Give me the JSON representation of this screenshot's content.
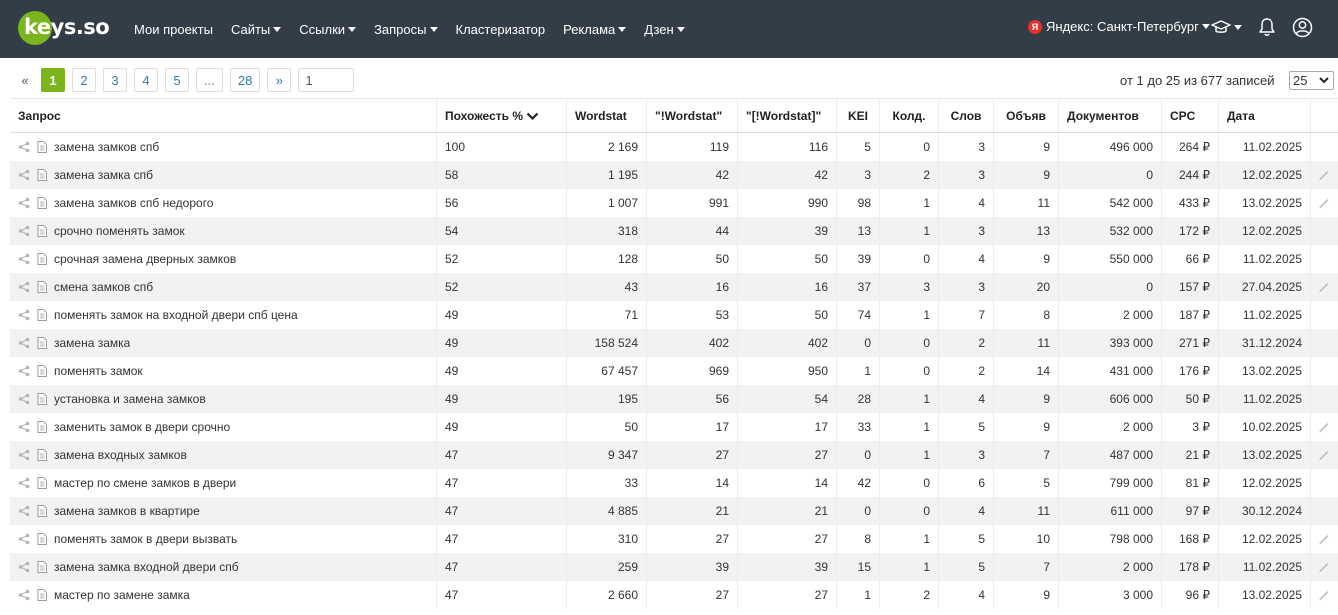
{
  "header": {
    "logo_text": "keys.so",
    "nav": [
      {
        "label": "Мои проекты",
        "dropdown": false
      },
      {
        "label": "Сайты",
        "dropdown": true
      },
      {
        "label": "Ссылки",
        "dropdown": true
      },
      {
        "label": "Запросы",
        "dropdown": true
      },
      {
        "label": "Кластеризатор",
        "dropdown": false
      },
      {
        "label": "Реклама",
        "dropdown": true
      },
      {
        "label": "Дзен",
        "dropdown": true
      }
    ],
    "region_badge": "Я",
    "region_label": "Яндекс: Санкт-Петербург",
    "icons": [
      "graduation-cap-icon",
      "bell-icon",
      "user-icon"
    ],
    "colors": {
      "bar": "#323d48",
      "accent": "#7ab51d",
      "yandex": "#e5322d"
    }
  },
  "pagination": {
    "prev": "«",
    "pages": [
      "1",
      "2",
      "3",
      "4",
      "5",
      "...",
      "28"
    ],
    "active_page": "1",
    "next": "»",
    "goto_value": "1",
    "records_text": "от 1 до 25 из 677 записей",
    "per_page": "25"
  },
  "table": {
    "columns": [
      "Запрос",
      "Похожесть %",
      "Wordstat",
      "\"!Wordstat\"",
      "\"[!Wordstat]\"",
      "KEI",
      "Колд.",
      "Слов",
      "Объяв",
      "Документов",
      "CPC",
      "Дата"
    ],
    "rows": [
      {
        "query": "замена замков спб",
        "sim": "100",
        "ws": "2 169",
        "ws2": "119",
        "ws3": "116",
        "kei": "5",
        "kold": "0",
        "words": "3",
        "ads": "9",
        "docs": "496 000",
        "cpc": "264 ₽",
        "date": "11.02.2025",
        "wand": false
      },
      {
        "query": "замена замка спб",
        "sim": "58",
        "ws": "1 195",
        "ws2": "42",
        "ws3": "42",
        "kei": "3",
        "kold": "2",
        "words": "3",
        "ads": "9",
        "docs": "0",
        "cpc": "244 ₽",
        "date": "12.02.2025",
        "wand": true
      },
      {
        "query": "замена замков спб недорого",
        "sim": "56",
        "ws": "1 007",
        "ws2": "991",
        "ws3": "990",
        "kei": "98",
        "kold": "1",
        "words": "4",
        "ads": "11",
        "docs": "542 000",
        "cpc": "433 ₽",
        "date": "13.02.2025",
        "wand": true
      },
      {
        "query": "срочно поменять замок",
        "sim": "54",
        "ws": "318",
        "ws2": "44",
        "ws3": "39",
        "kei": "13",
        "kold": "1",
        "words": "3",
        "ads": "13",
        "docs": "532 000",
        "cpc": "172 ₽",
        "date": "12.02.2025",
        "wand": false
      },
      {
        "query": "срочная замена дверных замков",
        "sim": "52",
        "ws": "128",
        "ws2": "50",
        "ws3": "50",
        "kei": "39",
        "kold": "0",
        "words": "4",
        "ads": "9",
        "docs": "550 000",
        "cpc": "66 ₽",
        "date": "11.02.2025",
        "wand": false
      },
      {
        "query": "смена замков спб",
        "sim": "52",
        "ws": "43",
        "ws2": "16",
        "ws3": "16",
        "kei": "37",
        "kold": "3",
        "words": "3",
        "ads": "20",
        "docs": "0",
        "cpc": "157 ₽",
        "date": "27.04.2025",
        "wand": true
      },
      {
        "query": "поменять замок на входной двери спб цена",
        "sim": "49",
        "ws": "71",
        "ws2": "53",
        "ws3": "50",
        "kei": "74",
        "kold": "1",
        "words": "7",
        "ads": "8",
        "docs": "2 000",
        "cpc": "187 ₽",
        "date": "11.02.2025",
        "wand": false
      },
      {
        "query": "замена замка",
        "sim": "49",
        "ws": "158 524",
        "ws2": "402",
        "ws3": "402",
        "kei": "0",
        "kold": "0",
        "words": "2",
        "ads": "11",
        "docs": "393 000",
        "cpc": "271 ₽",
        "date": "31.12.2024",
        "wand": false
      },
      {
        "query": "поменять замок",
        "sim": "49",
        "ws": "67 457",
        "ws2": "969",
        "ws3": "950",
        "kei": "1",
        "kold": "0",
        "words": "2",
        "ads": "14",
        "docs": "431 000",
        "cpc": "176 ₽",
        "date": "13.02.2025",
        "wand": false
      },
      {
        "query": "установка и замена замков",
        "sim": "49",
        "ws": "195",
        "ws2": "56",
        "ws3": "54",
        "kei": "28",
        "kold": "1",
        "words": "4",
        "ads": "9",
        "docs": "606 000",
        "cpc": "50 ₽",
        "date": "11.02.2025",
        "wand": false
      },
      {
        "query": "заменить замок в двери срочно",
        "sim": "49",
        "ws": "50",
        "ws2": "17",
        "ws3": "17",
        "kei": "33",
        "kold": "1",
        "words": "5",
        "ads": "9",
        "docs": "2 000",
        "cpc": "3 ₽",
        "date": "10.02.2025",
        "wand": true
      },
      {
        "query": "замена входных замков",
        "sim": "47",
        "ws": "9 347",
        "ws2": "27",
        "ws3": "27",
        "kei": "0",
        "kold": "1",
        "words": "3",
        "ads": "7",
        "docs": "487 000",
        "cpc": "21 ₽",
        "date": "13.02.2025",
        "wand": true
      },
      {
        "query": "мастер по смене замков в двери",
        "sim": "47",
        "ws": "33",
        "ws2": "14",
        "ws3": "14",
        "kei": "42",
        "kold": "0",
        "words": "6",
        "ads": "5",
        "docs": "799 000",
        "cpc": "81 ₽",
        "date": "12.02.2025",
        "wand": false
      },
      {
        "query": "замена замков в квартире",
        "sim": "47",
        "ws": "4 885",
        "ws2": "21",
        "ws3": "21",
        "kei": "0",
        "kold": "0",
        "words": "4",
        "ads": "11",
        "docs": "611 000",
        "cpc": "97 ₽",
        "date": "30.12.2024",
        "wand": false
      },
      {
        "query": "поменять замок в двери вызвать",
        "sim": "47",
        "ws": "310",
        "ws2": "27",
        "ws3": "27",
        "kei": "8",
        "kold": "1",
        "words": "5",
        "ads": "10",
        "docs": "798 000",
        "cpc": "168 ₽",
        "date": "12.02.2025",
        "wand": true
      },
      {
        "query": "замена замка входной двери спб",
        "sim": "47",
        "ws": "259",
        "ws2": "39",
        "ws3": "39",
        "kei": "15",
        "kold": "1",
        "words": "5",
        "ads": "7",
        "docs": "2 000",
        "cpc": "178 ₽",
        "date": "11.02.2025",
        "wand": true
      },
      {
        "query": "мастер по замене замка",
        "sim": "47",
        "ws": "2 660",
        "ws2": "27",
        "ws3": "27",
        "kei": "1",
        "kold": "2",
        "words": "4",
        "ads": "9",
        "docs": "3 000",
        "cpc": "96 ₽",
        "date": "13.02.2025",
        "wand": true
      }
    ]
  }
}
